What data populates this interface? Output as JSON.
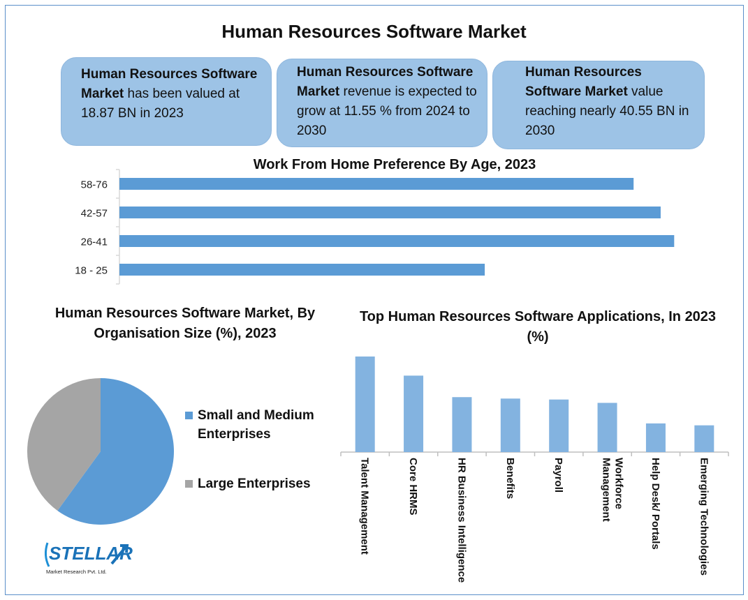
{
  "title": "Human Resources Software Market",
  "stat_boxes": [
    {
      "bold": "Human Resources Software Market",
      "rest": " has been valued at 18.87 BN in 2023"
    },
    {
      "bold": "Human Resources Software Market",
      "rest": " revenue is expected to grow at 11.55 % from 2024 to 2030"
    },
    {
      "bold": "Human Resources Software Market",
      "rest": " value reaching nearly 40.55 BN in 2030"
    }
  ],
  "colors": {
    "blue": "#5b9bd5",
    "light_blue": "#83b3e0",
    "gray": "#a5a5a5",
    "box": "#9dc3e6",
    "frame": "#5b8fc9"
  },
  "logo": {
    "name": "STELLAR",
    "subtitle": "Market Research Pvt. Ltd."
  },
  "chart_data": [
    {
      "type": "bar",
      "orientation": "horizontal",
      "title": "Work From Home Preference By Age, 2023",
      "categories": [
        "58-76",
        "42-57",
        "26-41",
        "18 - 25"
      ],
      "values": [
        38,
        40,
        41,
        27
      ],
      "xlim": [
        0,
        41.5
      ],
      "grid": false,
      "color": "#5b9bd5"
    },
    {
      "type": "pie",
      "title": "Human Resources Software Market, By Organisation Size (%), 2023",
      "labels": [
        "Small and Medium Enterprises",
        "Large Enterprises"
      ],
      "values": [
        60,
        40
      ],
      "colors": [
        "#5b9bd5",
        "#a5a5a5"
      ],
      "legend": "right"
    },
    {
      "type": "bar",
      "title": "Top Human Resources Software Applications, In 2023 (%)",
      "categories": [
        "Talent Management",
        "Core HRMS",
        "HR Business Intelligence",
        "Benefits",
        "Payroll",
        "Workforce Management",
        "Help Desk/ Portals",
        "Emerging Technologies"
      ],
      "values": [
        20,
        16,
        11.5,
        11.2,
        11,
        10.3,
        6,
        5.6
      ],
      "ylim": [
        0,
        20
      ],
      "grid": false,
      "color": "#83b3e0"
    }
  ]
}
